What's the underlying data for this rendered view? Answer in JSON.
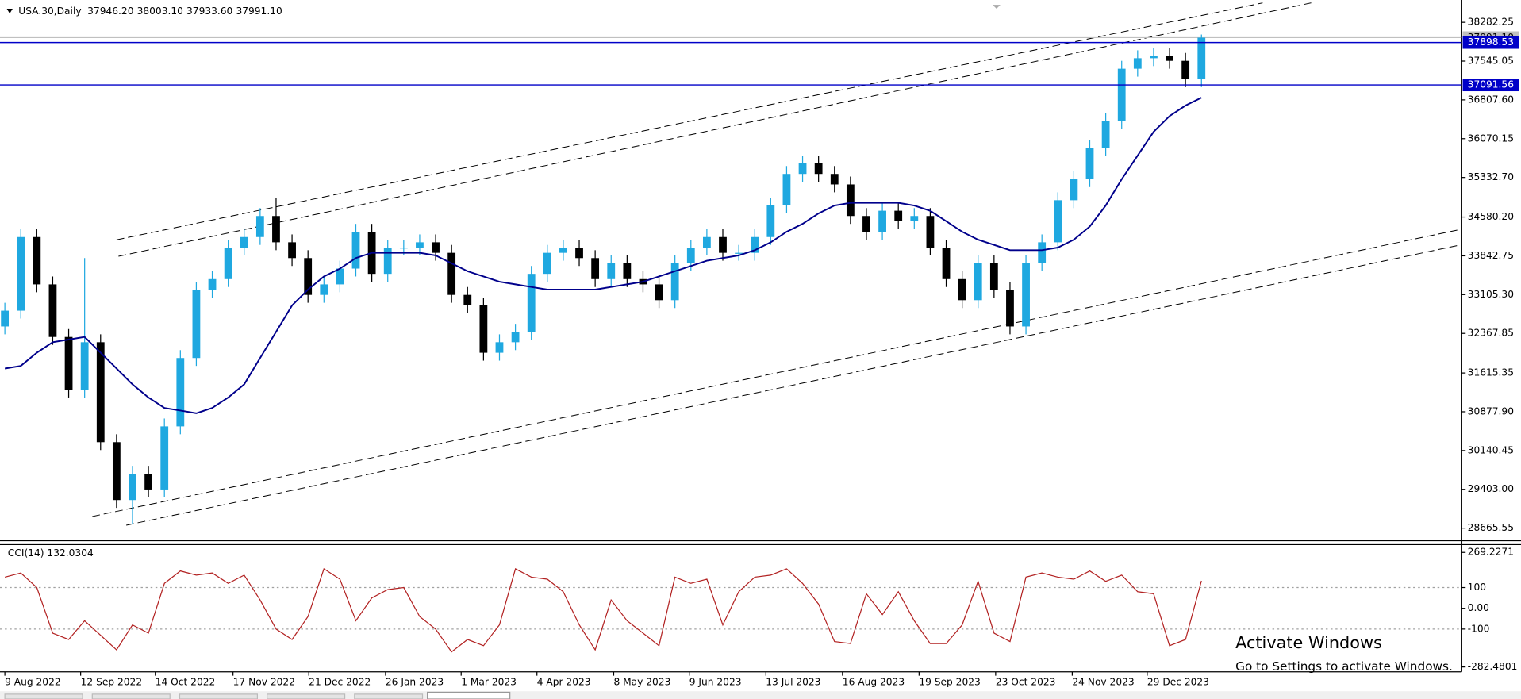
{
  "chart_data": [
    {
      "type": "candlestick",
      "title": "USA.30,Daily",
      "ohlc_header": [
        {
          "value": 37946.2,
          "label": "37946.20"
        },
        {
          "value": 38003.1,
          "label": "38003.10"
        },
        {
          "value": 37933.6,
          "label": "37933.60"
        },
        {
          "value": 37991.1,
          "label": "37991.10"
        }
      ],
      "open": [
        32500,
        32800,
        34200,
        33300,
        32300,
        31300,
        32200,
        30300,
        29200,
        29700,
        29400,
        30600,
        31900,
        33200,
        33400,
        34000,
        34200,
        34600,
        34100,
        33800,
        33100,
        33300,
        33600,
        34300,
        33500,
        34000,
        34000,
        34100,
        33900,
        33100,
        32900,
        32000,
        32200,
        32400,
        33500,
        33900,
        34000,
        33800,
        33400,
        33700,
        33400,
        33300,
        33000,
        33700,
        34000,
        34200,
        33900,
        33900,
        34200,
        34800,
        35400,
        35600,
        35400,
        35200,
        34600,
        34300,
        34700,
        34500,
        34600,
        34000,
        33400,
        33000,
        33700,
        33200,
        32500,
        33700,
        34100,
        34900,
        35300,
        35900,
        36400,
        37400,
        37600,
        37650,
        37550,
        37200
      ],
      "high": [
        32950,
        34350,
        34350,
        33450,
        32450,
        33800,
        32350,
        30450,
        29850,
        29850,
        30750,
        32050,
        33350,
        33550,
        34150,
        34350,
        34750,
        34950,
        34250,
        33950,
        33450,
        33750,
        34450,
        34450,
        34150,
        34150,
        34250,
        34250,
        34050,
        33250,
        33050,
        32350,
        32550,
        33650,
        34050,
        34150,
        34150,
        33950,
        33850,
        33850,
        33550,
        33450,
        33850,
        34150,
        34350,
        34350,
        34050,
        34350,
        34950,
        35550,
        35750,
        35750,
        35550,
        35350,
        34750,
        34850,
        34850,
        34750,
        34750,
        34150,
        33550,
        33850,
        33850,
        33350,
        33850,
        34250,
        35050,
        35450,
        36050,
        36550,
        37550,
        37750,
        37800,
        37800,
        37700,
        38050
      ],
      "low": [
        32350,
        32650,
        33150,
        32150,
        31150,
        31150,
        30150,
        29050,
        28750,
        29250,
        29250,
        30450,
        31750,
        33050,
        33250,
        33850,
        34050,
        33950,
        33650,
        32950,
        32950,
        33150,
        33450,
        33350,
        33350,
        33850,
        33850,
        33750,
        32950,
        32750,
        31850,
        31850,
        32050,
        32250,
        33350,
        33750,
        33650,
        33250,
        33250,
        33250,
        33150,
        32850,
        32850,
        33550,
        33850,
        33750,
        33750,
        33750,
        34050,
        34650,
        35250,
        35250,
        35050,
        34450,
        34150,
        34150,
        34350,
        34350,
        33850,
        33250,
        32850,
        32850,
        33050,
        32350,
        32350,
        33550,
        33950,
        34750,
        35150,
        35750,
        36250,
        37250,
        37450,
        37400,
        37050,
        37050
      ],
      "close": [
        32800,
        34200,
        33300,
        32300,
        31300,
        32200,
        30300,
        29200,
        29700,
        29400,
        30600,
        31900,
        33200,
        33400,
        34000,
        34200,
        34600,
        34100,
        33800,
        33100,
        33300,
        33600,
        34300,
        33500,
        34000,
        34000,
        34100,
        33900,
        33100,
        32900,
        32000,
        32200,
        32400,
        33500,
        33900,
        34000,
        33800,
        33400,
        33700,
        33400,
        33300,
        33000,
        33700,
        34000,
        34200,
        33900,
        33900,
        34200,
        34800,
        35400,
        35600,
        35400,
        35200,
        34600,
        34300,
        34700,
        34500,
        34600,
        34000,
        33400,
        33000,
        33700,
        33200,
        32500,
        33700,
        34100,
        34900,
        35300,
        35900,
        36400,
        37400,
        37600,
        37650,
        37550,
        37200,
        37991
      ],
      "up_color": "#1fa8e0",
      "down_color": "#000000",
      "ma": {
        "color": "#00008b",
        "values": [
          31700,
          31750,
          32000,
          32200,
          32250,
          32300,
          32000,
          31700,
          31400,
          31150,
          30950,
          30900,
          30850,
          30950,
          31150,
          31400,
          31900,
          32400,
          32900,
          33200,
          33450,
          33600,
          33800,
          33900,
          33900,
          33900,
          33900,
          33850,
          33700,
          33550,
          33450,
          33350,
          33300,
          33250,
          33200,
          33200,
          33200,
          33200,
          33250,
          33300,
          33350,
          33450,
          33550,
          33650,
          33750,
          33800,
          33850,
          33950,
          34100,
          34300,
          34450,
          34650,
          34800,
          34850,
          34850,
          34850,
          34850,
          34800,
          34700,
          34500,
          34300,
          34150,
          34050,
          33950,
          33950,
          33950,
          34000,
          34150,
          34400,
          34800,
          35300,
          35750,
          36200,
          36500,
          36700,
          36850
        ]
      },
      "levels": [
        {
          "value": 37898.53,
          "color": "#0000c8"
        },
        {
          "value": 37091.56,
          "color": "#0000c8"
        }
      ],
      "last_price": {
        "value": 37991.1,
        "label": "37991.10"
      },
      "xlim": [
        0,
        75
      ],
      "xticks": [
        {
          "value": 0,
          "label": "9 Aug 2022"
        },
        {
          "value": 4.75,
          "label": "12 Sep 2022"
        },
        {
          "value": 9.43,
          "label": "14 Oct 2022"
        },
        {
          "value": 14.3,
          "label": "17 Nov 2022"
        },
        {
          "value": 19.05,
          "label": "21 Dec 2022"
        },
        {
          "value": 23.86,
          "label": "26 Jan 2023"
        },
        {
          "value": 28.6,
          "label": "1 Mar 2023"
        },
        {
          "value": 33.35,
          "label": "4 Apr 2023"
        },
        {
          "value": 38.16,
          "label": "8 May 2023"
        },
        {
          "value": 42.9,
          "label": "9 Jun 2023"
        },
        {
          "value": 47.7,
          "label": "13 Jul 2023"
        },
        {
          "value": 52.5,
          "label": "16 Aug 2023"
        },
        {
          "value": 57.3,
          "label": "19 Sep 2023"
        },
        {
          "value": 62.1,
          "label": "23 Oct 2023"
        },
        {
          "value": 66.9,
          "label": "24 Nov 2023"
        },
        {
          "value": 71.6,
          "label": "29 Dec 2023"
        }
      ],
      "ylim": [
        28444,
        38614.5
      ],
      "yticks": [
        {
          "value": 38282.25,
          "label": "38282.25"
        },
        {
          "value": 37545.05,
          "label": "37545.05"
        },
        {
          "value": 36807.6,
          "label": "36807.60"
        },
        {
          "value": 36070.15,
          "label": "36070.15"
        },
        {
          "value": 35332.7,
          "label": "35332.70"
        },
        {
          "value": 34580.2,
          "label": "34580.20"
        },
        {
          "value": 33842.75,
          "label": "33842.75"
        },
        {
          "value": 33105.3,
          "label": "33105.30"
        },
        {
          "value": 32367.85,
          "label": "32367.85"
        },
        {
          "value": 31615.35,
          "label": "31615.35"
        },
        {
          "value": 30877.9,
          "label": "30877.90"
        },
        {
          "value": 30140.45,
          "label": "30140.45"
        },
        {
          "value": 29403,
          "label": "29403.00"
        },
        {
          "value": 28665.55,
          "label": "28665.55"
        }
      ]
    },
    {
      "type": "line",
      "title": "CCI(14) 132.0304",
      "color": "#b22222",
      "values": [
        150,
        170,
        100,
        -120,
        -150,
        -60,
        -130,
        -200,
        -80,
        -120,
        120,
        180,
        160,
        170,
        120,
        160,
        40,
        -100,
        -150,
        -40,
        190,
        140,
        -60,
        50,
        90,
        100,
        -40,
        -100,
        -210,
        -150,
        -180,
        -80,
        190,
        150,
        140,
        80,
        -80,
        -200,
        40,
        -60,
        -120,
        -180,
        150,
        120,
        140,
        -80,
        80,
        150,
        160,
        190,
        120,
        20,
        -160,
        -170,
        70,
        -30,
        80,
        -60,
        -170,
        -170,
        -80,
        130,
        -120,
        -160,
        150,
        170,
        150,
        140,
        180,
        130,
        160,
        80,
        70,
        -180,
        -150,
        132.0304
      ],
      "ylim": [
        -282.4801,
        269.2271
      ],
      "yticks": [
        269.2271,
        100,
        {
          "value": 0,
          "label": "0.00"
        },
        -100,
        -282.4801
      ],
      "levels": [
        100,
        -100
      ]
    }
  ],
  "watermark": {
    "title": "Activate Windows",
    "subtitle": "Go to Settings to activate Windows."
  }
}
